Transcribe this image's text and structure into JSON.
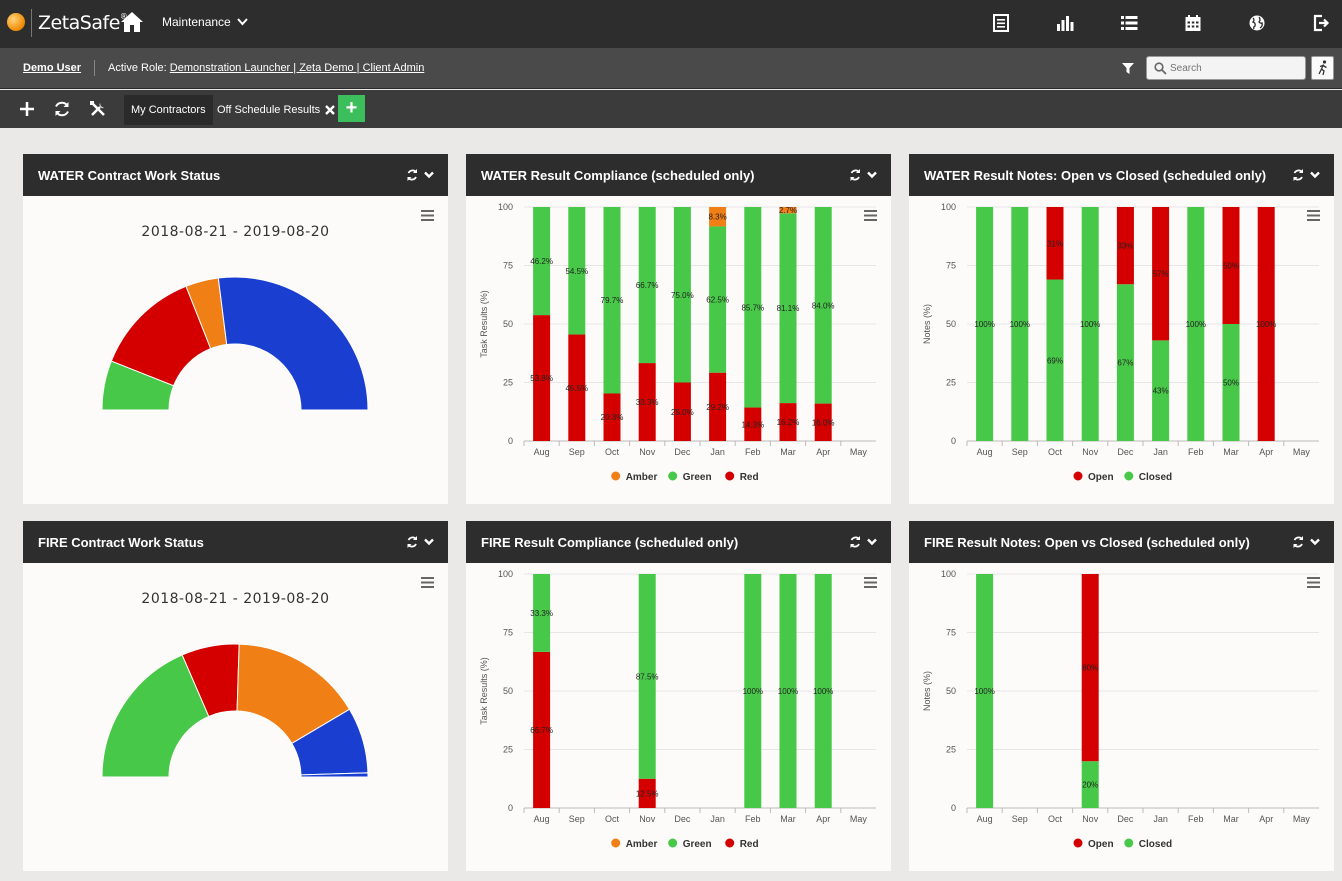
{
  "app": {
    "logo_text": "ZetaSafe",
    "module": "Maintenance"
  },
  "user": {
    "name": "Demo User",
    "role_label": "Active Role:",
    "role_value": "Demonstration Launcher | Zeta Demo | Client Admin"
  },
  "search": {
    "placeholder": "Search"
  },
  "tabs": [
    {
      "label": "My Contractors"
    },
    {
      "label": "Off Schedule Results"
    }
  ],
  "colors": {
    "red": "#d40000",
    "green": "#48c848",
    "amber": "#f07f16",
    "blue": "#1a3fd0"
  },
  "panels": {
    "water_status": {
      "title": "WATER Contract Work Status",
      "date_range": "2018-08-21 - 2019-08-20"
    },
    "fire_status": {
      "title": "FIRE Contract Work Status",
      "date_range": "2018-08-21 - 2019-08-20"
    },
    "water_compliance": {
      "title": "WATER Result Compliance (scheduled only)"
    },
    "fire_compliance": {
      "title": "FIRE Result Compliance (scheduled only)"
    },
    "water_notes": {
      "title": "WATER Result Notes: Open vs Closed (scheduled only)"
    },
    "fire_notes": {
      "title": "FIRE Result Notes: Open vs Closed (scheduled only)"
    }
  },
  "chart_data": [
    {
      "id": "water_status",
      "type": "pie",
      "subtype": "semi-donut",
      "slices": [
        {
          "color": "green",
          "value": 12
        },
        {
          "color": "red",
          "value": 26
        },
        {
          "color": "amber",
          "value": 8
        },
        {
          "color": "blue",
          "value": 54
        }
      ]
    },
    {
      "id": "fire_status",
      "type": "pie",
      "subtype": "semi-donut",
      "slices": [
        {
          "color": "green",
          "value": 37
        },
        {
          "color": "red",
          "value": 14
        },
        {
          "color": "amber",
          "value": 32
        },
        {
          "color": "blue",
          "value": 16
        },
        {
          "color": "blue",
          "value": 1
        }
      ]
    },
    {
      "id": "water_compliance",
      "type": "bar",
      "stacked": true,
      "ylabel": "Task Results (%)",
      "ylim": [
        0,
        100
      ],
      "yticks": [
        "0",
        "25",
        "50",
        "75",
        "100"
      ],
      "categories": [
        "Aug",
        "Sep",
        "Oct",
        "Nov",
        "Dec",
        "Jan",
        "Feb",
        "Mar",
        "Apr",
        "May"
      ],
      "series": [
        {
          "name": "Red",
          "color": "red",
          "values": [
            53.8,
            45.5,
            20.3,
            33.3,
            25.0,
            29.2,
            14.3,
            16.2,
            16.0,
            0
          ],
          "labels": [
            "53.8%",
            "45.5%",
            "20.3%",
            "33.3%",
            "25.0%",
            "29.2%",
            "14.3%",
            "16.2%",
            "16.0%",
            ""
          ]
        },
        {
          "name": "Green",
          "color": "green",
          "values": [
            46.2,
            54.5,
            79.7,
            66.7,
            75.0,
            62.5,
            85.7,
            81.1,
            84.0,
            0
          ],
          "labels": [
            "46.2%",
            "54.5%",
            "79.7%",
            "66.7%",
            "75.0%",
            "62.5%",
            "85.7%",
            "81.1%",
            "84.0%",
            ""
          ]
        },
        {
          "name": "Amber",
          "color": "amber",
          "values": [
            0,
            0,
            0,
            0,
            0,
            8.3,
            0,
            2.7,
            0,
            0
          ],
          "labels": [
            "",
            "",
            "",
            "",
            "",
            "8.3%",
            "",
            "2.7%",
            "",
            ""
          ]
        }
      ],
      "legend": [
        {
          "name": "Amber",
          "color": "amber"
        },
        {
          "name": "Green",
          "color": "green"
        },
        {
          "name": "Red",
          "color": "red"
        }
      ]
    },
    {
      "id": "fire_compliance",
      "type": "bar",
      "stacked": true,
      "ylabel": "Task Results (%)",
      "ylim": [
        0,
        100
      ],
      "yticks": [
        "0",
        "25",
        "50",
        "75",
        "100"
      ],
      "categories": [
        "Aug",
        "Sep",
        "Oct",
        "Nov",
        "Dec",
        "Jan",
        "Feb",
        "Mar",
        "Apr",
        "May"
      ],
      "series": [
        {
          "name": "Red",
          "color": "red",
          "values": [
            66.7,
            0,
            0,
            12.5,
            0,
            0,
            0,
            0,
            0,
            0
          ],
          "labels": [
            "66.7%",
            "",
            "",
            "12.5%",
            "",
            "",
            "",
            "",
            "",
            ""
          ]
        },
        {
          "name": "Green",
          "color": "green",
          "values": [
            33.3,
            0,
            0,
            87.5,
            0,
            0,
            100,
            100,
            100,
            0
          ],
          "labels": [
            "33.3%",
            "",
            "",
            "87.5%",
            "",
            "",
            "100%",
            "100%",
            "100%",
            ""
          ]
        }
      ],
      "legend": [
        {
          "name": "Amber",
          "color": "amber"
        },
        {
          "name": "Green",
          "color": "green"
        },
        {
          "name": "Red",
          "color": "red"
        }
      ]
    },
    {
      "id": "water_notes",
      "type": "bar",
      "stacked": true,
      "ylabel": "Notes (%)",
      "ylim": [
        0,
        100
      ],
      "yticks": [
        "0",
        "25",
        "50",
        "75",
        "100"
      ],
      "categories": [
        "Aug",
        "Sep",
        "Oct",
        "Nov",
        "Dec",
        "Jan",
        "Feb",
        "Mar",
        "Apr",
        "May"
      ],
      "series": [
        {
          "name": "Closed",
          "color": "green",
          "values": [
            100,
            100,
            69,
            100,
            67,
            43,
            100,
            50,
            0,
            0
          ],
          "labels": [
            "100%",
            "100%",
            "69%",
            "100%",
            "67%",
            "43%",
            "100%",
            "50%",
            "",
            ""
          ]
        },
        {
          "name": "Open",
          "color": "red",
          "values": [
            0,
            0,
            31,
            0,
            33,
            57,
            0,
            50,
            100,
            0
          ],
          "labels": [
            "",
            "",
            "31%",
            "",
            "33%",
            "57%",
            "",
            "50%",
            "100%",
            ""
          ]
        }
      ],
      "legend": [
        {
          "name": "Open",
          "color": "red"
        },
        {
          "name": "Closed",
          "color": "green"
        }
      ]
    },
    {
      "id": "fire_notes",
      "type": "bar",
      "stacked": true,
      "ylabel": "Notes (%)",
      "ylim": [
        0,
        100
      ],
      "yticks": [
        "0",
        "25",
        "50",
        "75",
        "100"
      ],
      "categories": [
        "Aug",
        "Sep",
        "Oct",
        "Nov",
        "Dec",
        "Jan",
        "Feb",
        "Mar",
        "Apr",
        "May"
      ],
      "series": [
        {
          "name": "Closed",
          "color": "green",
          "values": [
            100,
            0,
            0,
            20,
            0,
            0,
            0,
            0,
            0,
            0
          ],
          "labels": [
            "100%",
            "",
            "",
            "20%",
            "",
            "",
            "",
            "",
            "",
            ""
          ]
        },
        {
          "name": "Open",
          "color": "red",
          "values": [
            0,
            0,
            0,
            80,
            0,
            0,
            0,
            0,
            0,
            0
          ],
          "labels": [
            "",
            "",
            "",
            "80%",
            "",
            "",
            "",
            "",
            "",
            ""
          ]
        }
      ],
      "legend": [
        {
          "name": "Open",
          "color": "red"
        },
        {
          "name": "Closed",
          "color": "green"
        }
      ]
    }
  ]
}
